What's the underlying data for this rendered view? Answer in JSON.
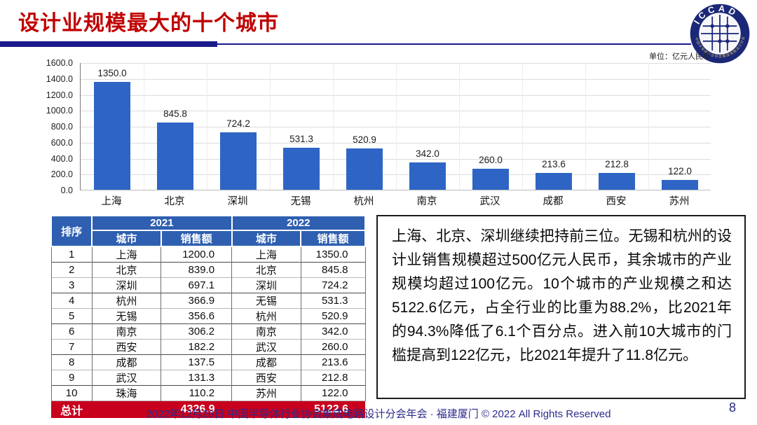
{
  "slide": {
    "title": "设计业规模最大的十个城市",
    "page_number": "8",
    "footer": "2022年12月26日 中国半导体行业协会集成电路设计分会年会 · 福建厦门 © 2022 All Rights Reserved",
    "logo_text": "ICCAD",
    "logo_ring_text": "中国半导体行业协会集成电路设计分会"
  },
  "chart_data": {
    "type": "bar",
    "title": "",
    "unit_label": "单位：亿元人民币",
    "categories": [
      "上海",
      "北京",
      "深圳",
      "无锡",
      "杭州",
      "南京",
      "武汉",
      "成都",
      "西安",
      "苏州"
    ],
    "values": [
      1350.0,
      845.8,
      724.2,
      531.3,
      520.9,
      342.0,
      260.0,
      213.6,
      212.8,
      122.0
    ],
    "value_labels": [
      "1350.0",
      "845.8",
      "724.2",
      "531.3",
      "520.9",
      "342.0",
      "260.0",
      "213.6",
      "212.8",
      "122.0"
    ],
    "xlabel": "",
    "ylabel": "",
    "ylim": [
      0,
      1600
    ],
    "ytick_step": 200,
    "yticks": [
      "1600.0",
      "1400.0",
      "1200.0",
      "1000.0",
      "800.0",
      "600.0",
      "400.0",
      "200.0",
      "0.0"
    ],
    "grid": true,
    "legend": false,
    "bar_color": "#2E65C5"
  },
  "table": {
    "col_rank": "排序",
    "col_2021": "2021",
    "col_2022": "2022",
    "col_city": "城市",
    "col_sales": "销售额",
    "rows": [
      [
        "1",
        "上海",
        "1200.0",
        "上海",
        "1350.0"
      ],
      [
        "2",
        "北京",
        "839.0",
        "北京",
        "845.8"
      ],
      [
        "3",
        "深圳",
        "697.1",
        "深圳",
        "724.2"
      ],
      [
        "4",
        "杭州",
        "366.9",
        "无锡",
        "531.3"
      ],
      [
        "5",
        "无锡",
        "356.6",
        "杭州",
        "520.9"
      ],
      [
        "6",
        "南京",
        "306.2",
        "南京",
        "342.0"
      ],
      [
        "7",
        "西安",
        "182.2",
        "武汉",
        "260.0"
      ],
      [
        "8",
        "成都",
        "137.5",
        "成都",
        "213.6"
      ],
      [
        "9",
        "武汉",
        "131.3",
        "西安",
        "212.8"
      ],
      [
        "10",
        "珠海",
        "110.2",
        "苏州",
        "122.0"
      ]
    ],
    "total_label": "总计",
    "total_2021": "4326.9",
    "total_2022": "5122.6",
    "header_bg": "#2F5FB0",
    "total_bg": "#C8001E"
  },
  "commentary": {
    "text": "上海、北京、深圳继续把持前三位。无锡和杭州的设计业销售规模超过500亿元人民币，其余城市的产业规模均超过100亿元。10个城市的产业规模之和达5122.6亿元，占全行业的比重为88.2%，比2021年的94.3%降低了6.1个百分点。进入前10大城市的门槛提高到122亿元，比2021年提升了11.8亿元。"
  }
}
